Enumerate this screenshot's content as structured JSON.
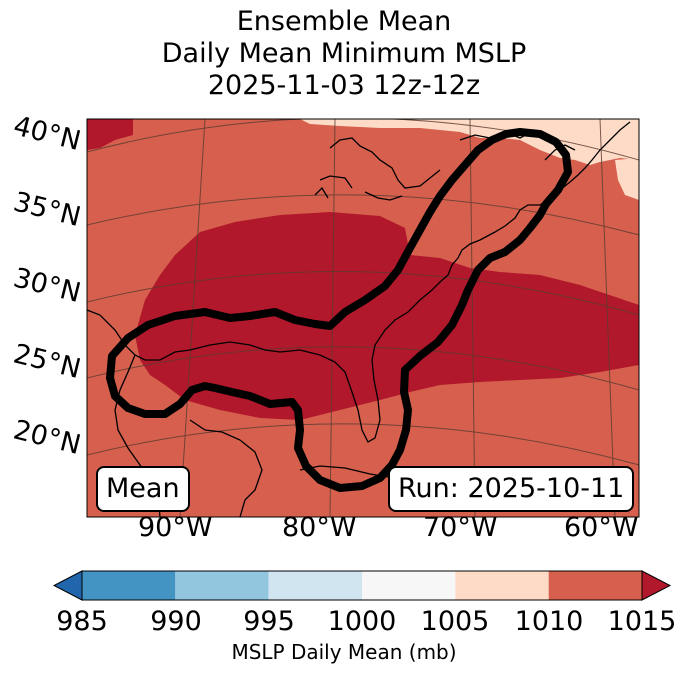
{
  "title": {
    "line1": "Ensemble Mean",
    "line2": "Daily Mean Minimum MSLP",
    "line3": "2025-11-03 12z-12z"
  },
  "map": {
    "lat_labels": [
      "40°N",
      "35°N",
      "30°N",
      "25°N",
      "20°N"
    ],
    "lon_labels": [
      "90°W",
      "80°W",
      "70°W",
      "60°W"
    ],
    "mean_box": "Mean",
    "run_box": "Run: 2025-10-11",
    "colors": {
      "ocean_land_1010_1015": "#d6604d",
      "low_1005_1010": "#fddbc7",
      "high_over_1015": "#b2182b",
      "contour": "#000000",
      "coast": "#000000",
      "grid": "#5a3a30"
    }
  },
  "colorbar": {
    "ticks": [
      "985",
      "990",
      "995",
      "1000",
      "1005",
      "1010",
      "1015"
    ],
    "label": "MSLP Daily Mean (mb)",
    "bins": [
      {
        "from": 985,
        "to": 990,
        "color": "#4393c3"
      },
      {
        "from": 990,
        "to": 995,
        "color": "#92c5de"
      },
      {
        "from": 995,
        "to": 1000,
        "color": "#d1e5f0"
      },
      {
        "from": 1000,
        "to": 1005,
        "color": "#f7f7f7"
      },
      {
        "from": 1005,
        "to": 1010,
        "color": "#fddbc7"
      },
      {
        "from": 1010,
        "to": 1015,
        "color": "#d6604d"
      }
    ],
    "under_color": "#2166ac",
    "over_color": "#b2182b"
  }
}
